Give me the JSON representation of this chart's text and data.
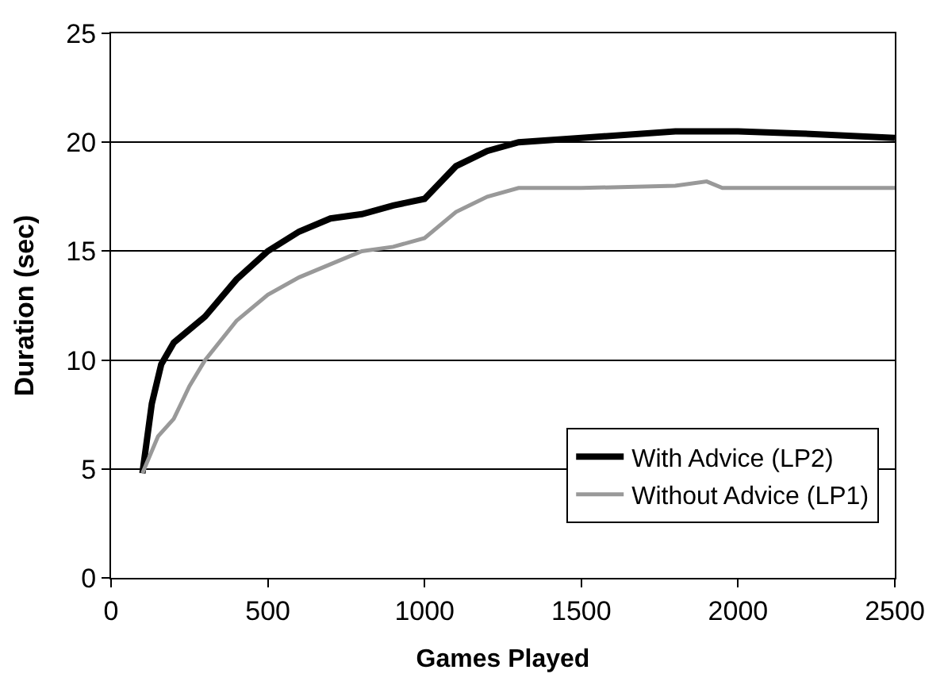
{
  "chart_data": {
    "type": "line",
    "xlabel": "Games Played",
    "ylabel": "Duration (sec)",
    "xlim": [
      0,
      2500
    ],
    "xticks": [
      0,
      500,
      1000,
      1500,
      2000,
      2500
    ],
    "ylim": [
      0,
      25
    ],
    "yticks": [
      0,
      5,
      10,
      15,
      20,
      25
    ],
    "grid": "y",
    "legend": "bottom right",
    "marker": "none",
    "line_style": "solid",
    "series": [
      {
        "name": "With Advice (LP2)",
        "color": "#000000",
        "x": [
          100,
          130,
          160,
          200,
          300,
          400,
          500,
          600,
          700,
          800,
          900,
          1000,
          1100,
          1200,
          1300,
          1500,
          1800,
          2000,
          2200,
          2500
        ],
        "values": [
          4.8,
          8,
          9.8,
          10.8,
          12,
          13.7,
          15,
          15.9,
          16.5,
          16.7,
          17.1,
          17.4,
          18.9,
          19.6,
          20,
          20.2,
          20.5,
          20.5,
          20.4,
          20.2
        ]
      },
      {
        "name": "Without Advice (LP1)",
        "color": "#999999",
        "x": [
          100,
          150,
          200,
          250,
          300,
          400,
          500,
          600,
          700,
          800,
          900,
          1000,
          1100,
          1200,
          1300,
          1500,
          1800,
          1900,
          1950,
          2500
        ],
        "values": [
          4.8,
          6.5,
          7.3,
          8.8,
          10,
          11.8,
          13,
          13.8,
          14.4,
          15,
          15.2,
          15.6,
          16.8,
          17.5,
          17.9,
          17.9,
          18,
          18.2,
          17.9,
          17.9
        ]
      }
    ]
  }
}
